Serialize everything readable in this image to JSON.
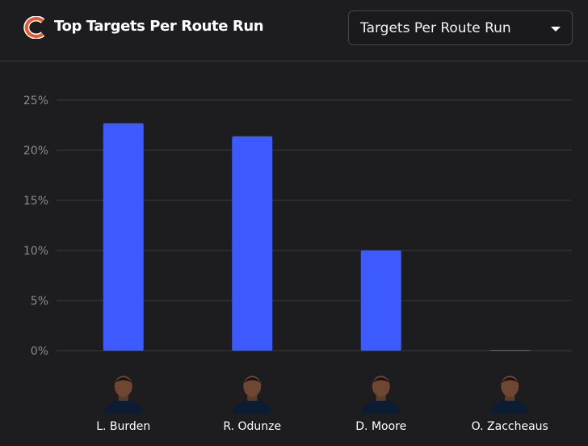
{
  "header": {
    "logo_icon": "bears-c-logo-icon",
    "title": "Top Targets Per Route Run"
  },
  "dropdown": {
    "selected": "Targets Per Route Run",
    "icon": "caret-down-icon"
  },
  "colors": {
    "background": "#1d1d20",
    "bar": "#3d5afe",
    "grid": "#3a3a3e",
    "logo_orange": "#e8592b"
  },
  "chart_data": {
    "type": "bar",
    "categories": [
      "L. Burden",
      "R. Odunze",
      "D. Moore",
      "O. Zaccheaus"
    ],
    "values": [
      22.7,
      21.4,
      10.0,
      0.0
    ],
    "ylim": [
      0,
      25
    ],
    "yticks": [
      0,
      5,
      10,
      15,
      20,
      25
    ],
    "ytick_labels": [
      "0%",
      "5%",
      "10%",
      "15%",
      "20%",
      "25%"
    ],
    "grid": true,
    "legend": "none",
    "title": "",
    "xlabel": "",
    "ylabel": ""
  }
}
